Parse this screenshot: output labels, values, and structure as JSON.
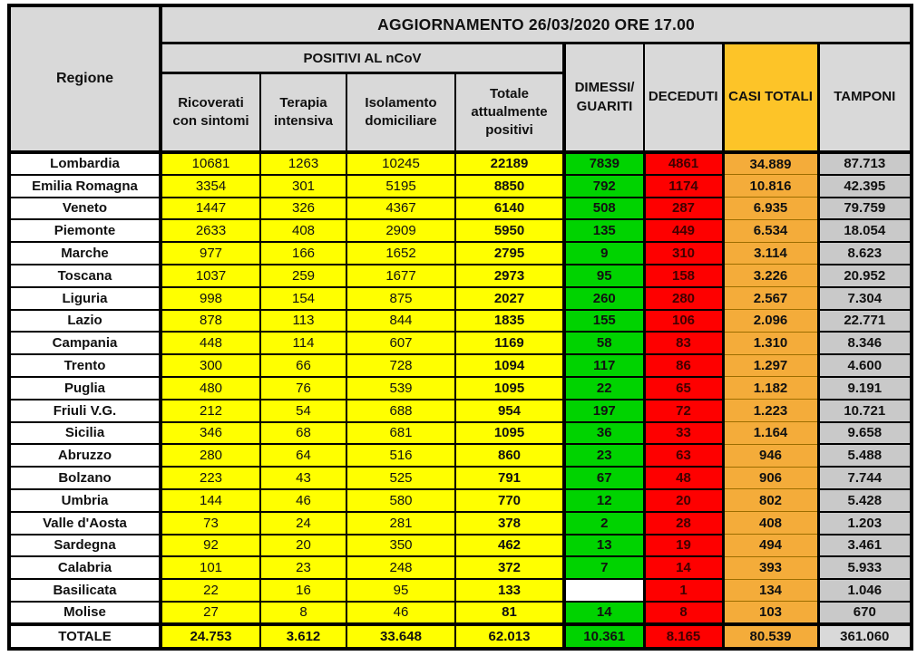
{
  "banner": {
    "title": "AGGIORNAMENTO 26/03/2020 ORE 17.00"
  },
  "header": {
    "regione": "Regione",
    "positivi_group": "POSITIVI AL nCoV",
    "sub": [
      "Ricoverati con sintomi",
      "Terapia intensiva",
      "Isolamento domiciliare",
      "Totale attualmente positivi"
    ],
    "dimessi": "DIMESSI/ GUARITI",
    "deceduti": "DECEDUTI",
    "casi": "CASI TOTALI",
    "tamponi": "TAMPONI"
  },
  "colors": {
    "header_gray": "#D9D9D9",
    "yellow": "#FFFF00",
    "green": "#00D300",
    "red": "#FE0000",
    "red_text": "#400000",
    "orange_header": "#FDC428",
    "orange_data": "#F4AC3A",
    "tamponi_gray": "#C9C9C9",
    "border": "#000000"
  },
  "table": {
    "rows": [
      {
        "cells": [
          "Lombardia",
          "10681",
          "1263",
          "10245",
          "22189",
          "7839",
          "4861",
          "34.889",
          "87.713"
        ]
      },
      {
        "cells": [
          "Emilia Romagna",
          "3354",
          "301",
          "5195",
          "8850",
          "792",
          "1174",
          "10.816",
          "42.395"
        ]
      },
      {
        "cells": [
          "Veneto",
          "1447",
          "326",
          "4367",
          "6140",
          "508",
          "287",
          "6.935",
          "79.759"
        ]
      },
      {
        "cells": [
          "Piemonte",
          "2633",
          "408",
          "2909",
          "5950",
          "135",
          "449",
          "6.534",
          "18.054"
        ]
      },
      {
        "cells": [
          "Marche",
          "977",
          "166",
          "1652",
          "2795",
          "9",
          "310",
          "3.114",
          "8.623"
        ]
      },
      {
        "cells": [
          "Toscana",
          "1037",
          "259",
          "1677",
          "2973",
          "95",
          "158",
          "3.226",
          "20.952"
        ]
      },
      {
        "cells": [
          "Liguria",
          "998",
          "154",
          "875",
          "2027",
          "260",
          "280",
          "2.567",
          "7.304"
        ]
      },
      {
        "cells": [
          "Lazio",
          "878",
          "113",
          "844",
          "1835",
          "155",
          "106",
          "2.096",
          "22.771"
        ]
      },
      {
        "cells": [
          "Campania",
          "448",
          "114",
          "607",
          "1169",
          "58",
          "83",
          "1.310",
          "8.346"
        ]
      },
      {
        "cells": [
          "Trento",
          "300",
          "66",
          "728",
          "1094",
          "117",
          "86",
          "1.297",
          "4.600"
        ]
      },
      {
        "cells": [
          "Puglia",
          "480",
          "76",
          "539",
          "1095",
          "22",
          "65",
          "1.182",
          "9.191"
        ]
      },
      {
        "cells": [
          "Friuli V.G.",
          "212",
          "54",
          "688",
          "954",
          "197",
          "72",
          "1.223",
          "10.721"
        ]
      },
      {
        "cells": [
          "Sicilia",
          "346",
          "68",
          "681",
          "1095",
          "36",
          "33",
          "1.164",
          "9.658"
        ]
      },
      {
        "cells": [
          "Abruzzo",
          "280",
          "64",
          "516",
          "860",
          "23",
          "63",
          "946",
          "5.488"
        ]
      },
      {
        "cells": [
          "Bolzano",
          "223",
          "43",
          "525",
          "791",
          "67",
          "48",
          "906",
          "7.744"
        ]
      },
      {
        "cells": [
          "Umbria",
          "144",
          "46",
          "580",
          "770",
          "12",
          "20",
          "802",
          "5.428"
        ]
      },
      {
        "cells": [
          "Valle d'Aosta",
          "73",
          "24",
          "281",
          "378",
          "2",
          "28",
          "408",
          "1.203"
        ]
      },
      {
        "cells": [
          "Sardegna",
          "92",
          "20",
          "350",
          "462",
          "13",
          "19",
          "494",
          "3.461"
        ]
      },
      {
        "cells": [
          "Calabria",
          "101",
          "23",
          "248",
          "372",
          "7",
          "14",
          "393",
          "5.933"
        ]
      },
      {
        "cells": [
          "Basilicata",
          "22",
          "16",
          "95",
          "133",
          "",
          "1",
          "134",
          "1.046"
        ]
      },
      {
        "cells": [
          "Molise",
          "27",
          "8",
          "46",
          "81",
          "14",
          "8",
          "103",
          "670"
        ]
      }
    ],
    "total": {
      "cells": [
        "TOTALE",
        "24.753",
        "3.612",
        "33.648",
        "62.013",
        "10.361",
        "8.165",
        "80.539",
        "361.060"
      ]
    }
  }
}
